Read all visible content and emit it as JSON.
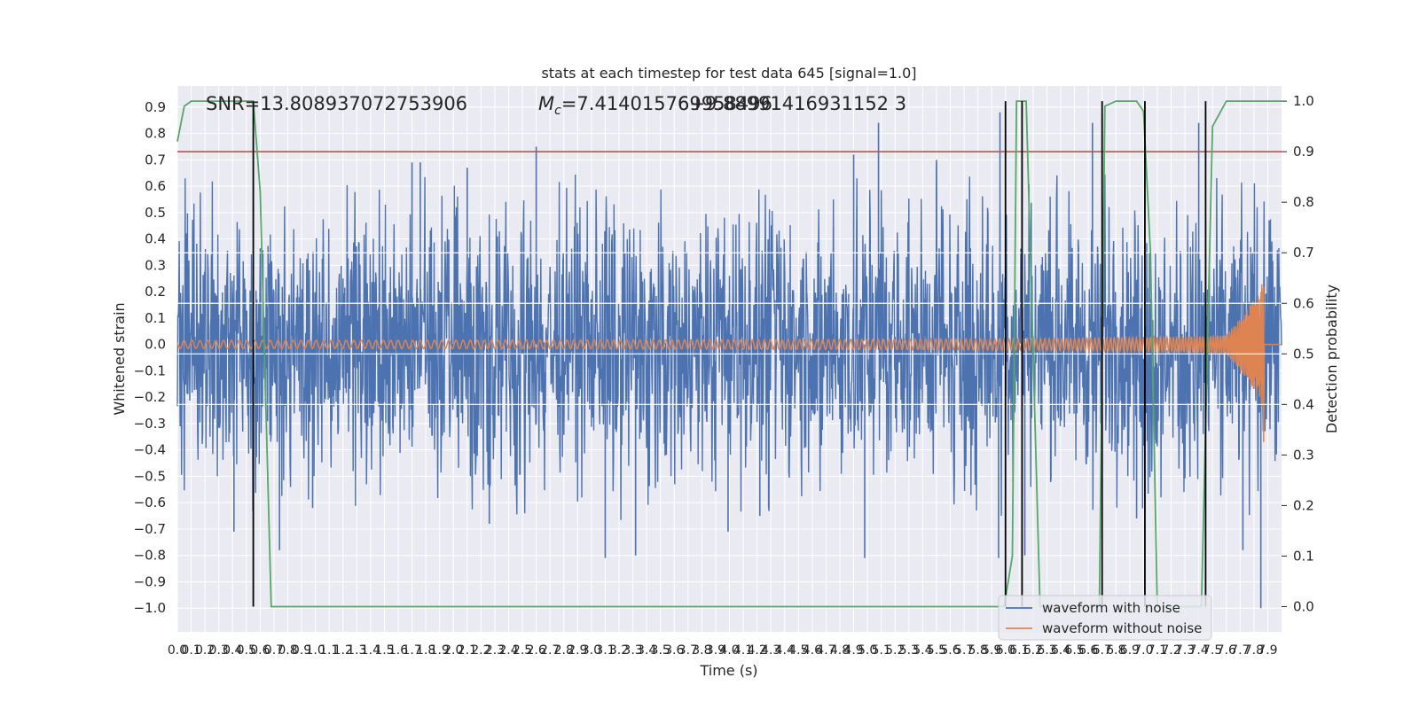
{
  "chart_data": {
    "type": "line",
    "title": "stats at each timestep for test data 645 [signal=1.0]",
    "xlabel": "Time (s)",
    "ylabel": "Whitened strain",
    "y2label": "Detection probability",
    "xlim": [
      0.0,
      8.0
    ],
    "ylim": [
      -1.09,
      0.98
    ],
    "y2lim": [
      -0.05,
      1.03
    ],
    "grid": true,
    "legend_position": "bottom-right",
    "annotations": {
      "snr": "SNR=13.808937072753906",
      "mc_symbol": "M",
      "mc_subscript": "c",
      "mc_value": "=7.414015769958496",
      "overlap": "6+9.88991416931152 3"
    },
    "x_tick_labels": [
      "0.0",
      "0.1",
      "0.2",
      "0.3",
      "0.4",
      "0.5",
      "0.6",
      "0.7",
      "0.8",
      "0.9",
      "1.0",
      "1.1",
      "1.2",
      "1.3",
      "1.4",
      "1.5",
      "1.6",
      "1.7",
      "1.8",
      "1.9",
      "2.0",
      "2.1",
      "2.2",
      "2.3",
      "2.4",
      "2.5",
      "2.6",
      "2.7",
      "2.8",
      "2.9",
      "3.0",
      "3.1",
      "3.2",
      "3.3",
      "3.4",
      "3.5",
      "3.6",
      "3.7",
      "3.8",
      "3.9",
      "4.0",
      "4.1",
      "4.2",
      "4.3",
      "4.4",
      "4.5",
      "4.6",
      "4.7",
      "4.8",
      "4.9",
      "5.0",
      "5.1",
      "5.2",
      "5.3",
      "5.4",
      "5.5",
      "5.6",
      "5.7",
      "5.8",
      "5.9",
      "6.0",
      "6.1",
      "6.2",
      "6.3",
      "6.4",
      "6.5",
      "6.6",
      "6.7",
      "6.8",
      "6.9",
      "7.0",
      "7.1",
      "7.2",
      "7.3",
      "7.4",
      "7.5",
      "7.6",
      "7.7",
      "7.8",
      "7.9"
    ],
    "y_tick_labels": [
      "−1.0",
      "−0.9",
      "−0.8",
      "−0.7",
      "−0.6",
      "−0.5",
      "−0.4",
      "−0.3",
      "−0.2",
      "−0.1",
      "0.0",
      "0.1",
      "0.2",
      "0.3",
      "0.4",
      "0.5",
      "0.6",
      "0.7",
      "0.8",
      "0.9"
    ],
    "y2_tick_labels": [
      "0.0",
      "0.1",
      "0.2",
      "0.3",
      "0.4",
      "0.5",
      "0.6",
      "0.7",
      "0.8",
      "0.9",
      "1.0"
    ],
    "threshold": {
      "value": 0.9,
      "axis": "right",
      "color": "#c44e52"
    },
    "vertical_markers": [
      0.55,
      6.0,
      6.12,
      6.7,
      7.01,
      7.45
    ],
    "series": [
      {
        "name": "waveform with noise",
        "color": "#4c72b0",
        "axis": "left",
        "description_kind": "noise",
        "typical_amplitude": 0.35,
        "spike_points": [
          {
            "x": 0.41,
            "y": -0.71
          },
          {
            "x": 0.74,
            "y": -0.78
          },
          {
            "x": 0.98,
            "y": -0.62
          },
          {
            "x": 1.7,
            "y": 0.69
          },
          {
            "x": 1.76,
            "y": 0.69
          },
          {
            "x": 2.1,
            "y": 0.67
          },
          {
            "x": 2.26,
            "y": -0.68
          },
          {
            "x": 2.6,
            "y": 0.75
          },
          {
            "x": 3.1,
            "y": -0.81
          },
          {
            "x": 3.32,
            "y": -0.8
          },
          {
            "x": 3.99,
            "y": -0.71
          },
          {
            "x": 4.22,
            "y": -0.65
          },
          {
            "x": 4.9,
            "y": 0.72
          },
          {
            "x": 4.98,
            "y": -0.81
          },
          {
            "x": 5.08,
            "y": 0.84
          },
          {
            "x": 5.5,
            "y": 0.7
          },
          {
            "x": 5.95,
            "y": -0.81
          },
          {
            "x": 5.96,
            "y": 0.88
          },
          {
            "x": 6.14,
            "y": -0.8
          },
          {
            "x": 6.63,
            "y": 0.84
          },
          {
            "x": 6.95,
            "y": -0.66
          },
          {
            "x": 7.4,
            "y": 0.84
          },
          {
            "x": 7.72,
            "y": -0.78
          },
          {
            "x": 7.85,
            "y": -1.0
          }
        ]
      },
      {
        "name": "waveform without noise",
        "color": "#dd8452",
        "axis": "left",
        "description_kind": "chirp",
        "start_amplitude": 0.015,
        "end_amplitude": 0.31,
        "merger_time": 7.87,
        "min_after_merger": -0.37
      },
      {
        "name": "detection probability",
        "color": "#55a868",
        "axis": "right",
        "x": [
          0.0,
          0.05,
          0.1,
          0.15,
          0.55,
          0.6,
          0.68,
          1.0,
          5.5,
          5.99,
          6.05,
          6.08,
          6.15,
          6.25,
          6.66,
          6.68,
          6.72,
          6.8,
          6.95,
          7.0,
          7.05,
          7.1,
          7.2,
          7.42,
          7.5,
          7.6,
          8.0
        ],
        "y": [
          0.92,
          0.99,
          1.0,
          1.0,
          1.0,
          0.82,
          0.0,
          0.0,
          0.0,
          0.0,
          0.1,
          1.0,
          1.0,
          0.0,
          0.0,
          0.0,
          0.99,
          1.0,
          1.0,
          0.98,
          0.7,
          0.0,
          0.0,
          0.0,
          0.95,
          1.0,
          1.0
        ]
      }
    ],
    "legend": [
      {
        "label": "waveform with noise",
        "color": "#4c72b0"
      },
      {
        "label": "waveform without noise",
        "color": "#dd8452"
      }
    ]
  }
}
